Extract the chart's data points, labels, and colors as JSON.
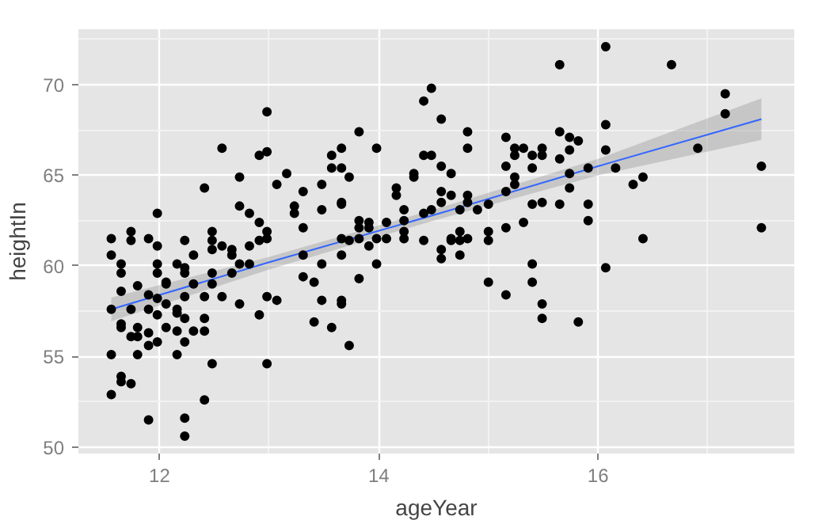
{
  "chart_data": {
    "type": "scatter",
    "xlabel": "ageYear",
    "ylabel": "heightIn",
    "xlim": [
      11.26,
      17.79
    ],
    "ylim": [
      49.64,
      73.06
    ],
    "xticks": [
      12,
      14,
      16
    ],
    "yticks": [
      50,
      55,
      60,
      65,
      70
    ],
    "grid": true,
    "series": [
      {
        "marker": "circle",
        "color": "#000000",
        "x": [
          11.56,
          11.56,
          11.56,
          11.56,
          11.56,
          11.65,
          11.65,
          11.65,
          11.65,
          11.65,
          11.65,
          11.65,
          11.74,
          11.74,
          11.74,
          11.74,
          11.74,
          11.8,
          11.8,
          11.8,
          11.8,
          11.9,
          11.9,
          11.9,
          11.9,
          11.9,
          11.9,
          11.98,
          11.98,
          11.98,
          11.98,
          11.98,
          11.98,
          11.98,
          12.06,
          12.06,
          12.06,
          12.06,
          12.16,
          12.16,
          12.16,
          12.16,
          12.16,
          12.23,
          12.23,
          12.23,
          12.23,
          12.23,
          12.23,
          12.23,
          12.23,
          12.31,
          12.31,
          12.31,
          12.41,
          12.41,
          12.41,
          12.41,
          12.41,
          12.48,
          12.48,
          12.48,
          12.48,
          12.48,
          12.48,
          12.57,
          12.57,
          12.57,
          12.66,
          12.66,
          12.66,
          12.73,
          12.73,
          12.73,
          12.73,
          12.82,
          12.82,
          12.82,
          12.91,
          12.91,
          12.91,
          12.91,
          12.98,
          12.98,
          12.98,
          12.98,
          12.98,
          12.98,
          13.07,
          13.07,
          13.16,
          13.23,
          13.23,
          13.31,
          13.31,
          13.31,
          13.31,
          13.41,
          13.41,
          13.48,
          13.48,
          13.48,
          13.48,
          13.57,
          13.57,
          13.57,
          13.66,
          13.66,
          13.66,
          13.66,
          13.66,
          13.66,
          13.66,
          13.66,
          13.73,
          13.73,
          13.73,
          13.82,
          13.82,
          13.82,
          13.82,
          13.82,
          13.91,
          13.91,
          13.91,
          13.98,
          13.98,
          13.98,
          14.07,
          14.07,
          14.16,
          14.16,
          14.23,
          14.23,
          14.23,
          14.23,
          14.32,
          14.32,
          14.41,
          14.41,
          14.41,
          14.41,
          14.48,
          14.48,
          14.48,
          14.57,
          14.57,
          14.57,
          14.57,
          14.57,
          14.57,
          14.66,
          14.66,
          14.66,
          14.66,
          14.74,
          14.74,
          14.74,
          14.74,
          14.81,
          14.81,
          14.81,
          14.81,
          14.81,
          14.9,
          15.0,
          15.0,
          15.0,
          15.0,
          15.16,
          15.16,
          15.16,
          15.16,
          15.16,
          15.24,
          15.24,
          15.24,
          15.24,
          15.32,
          15.32,
          15.4,
          15.4,
          15.4,
          15.4,
          15.4,
          15.49,
          15.49,
          15.49,
          15.49,
          15.49,
          15.65,
          15.65,
          15.65,
          15.65,
          15.74,
          15.74,
          15.74,
          15.74,
          15.82,
          15.82,
          15.91,
          15.91,
          15.91,
          16.07,
          16.07,
          16.07,
          16.07,
          16.16,
          16.32,
          16.41,
          16.41,
          16.67,
          16.91,
          17.16,
          17.16,
          17.49,
          17.49
        ],
        "values": [
          61.5,
          60.6,
          57.6,
          55.1,
          52.9,
          60.1,
          59.6,
          58.6,
          56.8,
          56.6,
          53.9,
          53.6,
          61.9,
          61.4,
          57.6,
          56.1,
          53.5,
          58.9,
          56.6,
          56.1,
          55.1,
          61.5,
          58.4,
          57.6,
          56.3,
          55.6,
          51.5,
          62.9,
          61.1,
          60.1,
          59.6,
          58.2,
          57.3,
          55.8,
          59.1,
          59.0,
          57.9,
          56.6,
          60.1,
          57.6,
          57.4,
          56.4,
          55.1,
          61.4,
          59.9,
          59.6,
          58.3,
          57.1,
          55.8,
          51.6,
          50.6,
          60.6,
          59.0,
          56.4,
          64.3,
          58.3,
          57.1,
          56.4,
          52.6,
          61.9,
          61.4,
          60.9,
          59.6,
          59.0,
          54.6,
          66.5,
          61.1,
          58.3,
          60.9,
          60.6,
          59.6,
          64.9,
          63.3,
          60.1,
          57.9,
          62.9,
          61.1,
          60.1,
          66.1,
          62.4,
          61.4,
          57.3,
          68.5,
          66.3,
          61.9,
          61.5,
          58.3,
          54.6,
          64.5,
          58.1,
          65.1,
          63.3,
          62.9,
          64.1,
          62.1,
          60.6,
          59.4,
          59.1,
          56.9,
          64.5,
          63.1,
          60.1,
          58.1,
          66.1,
          65.4,
          56.6,
          66.5,
          65.4,
          63.5,
          63.4,
          61.5,
          60.6,
          58.1,
          57.9,
          64.9,
          61.4,
          55.6,
          67.4,
          62.5,
          62.1,
          61.5,
          59.3,
          62.4,
          62.1,
          61.1,
          66.5,
          61.5,
          60.1,
          62.4,
          61.5,
          64.3,
          63.9,
          63.1,
          62.5,
          61.9,
          61.5,
          65.1,
          64.9,
          69.1,
          66.1,
          62.9,
          61.4,
          69.8,
          66.1,
          63.1,
          68.1,
          65.5,
          64.1,
          63.5,
          60.9,
          60.4,
          65.1,
          63.9,
          61.5,
          61.4,
          63.1,
          61.9,
          61.4,
          60.6,
          67.4,
          66.5,
          63.9,
          63.5,
          61.5,
          63.1,
          63.4,
          61.9,
          61.4,
          59.1,
          67.1,
          65.5,
          64.1,
          62.1,
          58.4,
          66.5,
          66.1,
          64.9,
          64.5,
          66.5,
          62.4,
          66.1,
          65.4,
          63.4,
          60.1,
          59.1,
          66.5,
          66.1,
          63.5,
          57.9,
          57.1,
          71.1,
          67.4,
          65.9,
          63.4,
          67.1,
          66.4,
          65.1,
          64.3,
          66.9,
          56.9,
          65.4,
          63.4,
          62.5,
          72.1,
          67.8,
          66.4,
          59.9,
          65.4,
          64.5,
          64.9,
          61.5,
          71.1,
          66.5,
          69.5,
          68.4,
          65.5,
          62.1
        ]
      },
      {
        "type": "line",
        "color": "#3366ff",
        "x": [
          11.56,
          13.0,
          14.5,
          16.0,
          17.49
        ],
        "values": [
          57.6,
          60.2,
          62.8,
          65.5,
          68.1
        ],
        "lower": [
          56.95,
          59.8,
          62.5,
          65.0,
          66.95
        ],
        "upper": [
          58.25,
          60.5,
          63.1,
          65.9,
          69.25
        ]
      }
    ]
  }
}
